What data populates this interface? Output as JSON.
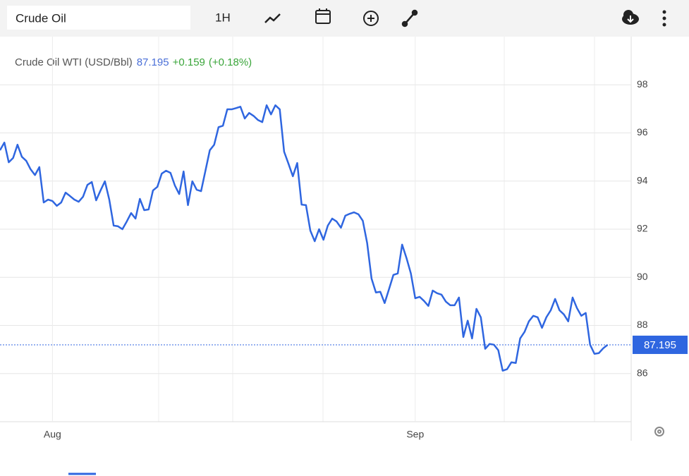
{
  "toolbar": {
    "search": "Crude Oil",
    "interval": "1H"
  },
  "chart_data": {
    "type": "line",
    "title": "Crude Oil WTI (USD/Bbl)",
    "last_price": 87.195,
    "change": "+0.159",
    "change_percent": "(+0.18%)",
    "color": "#2f66e0",
    "values": [
      95.28,
      95.6,
      94.78,
      94.96,
      95.51,
      95.01,
      94.84,
      94.49,
      94.25,
      94.58,
      93.11,
      93.23,
      93.17,
      92.97,
      93.11,
      93.52,
      93.38,
      93.23,
      93.14,
      93.35,
      93.84,
      93.96,
      93.2,
      93.61,
      93.99,
      93.23,
      92.15,
      92.12,
      92.0,
      92.32,
      92.67,
      92.44,
      93.26,
      92.79,
      92.82,
      93.61,
      93.76,
      94.31,
      94.43,
      94.34,
      93.82,
      93.46,
      94.4,
      93.0,
      93.99,
      93.64,
      93.58,
      94.43,
      95.28,
      95.51,
      96.24,
      96.3,
      96.98,
      96.98,
      97.03,
      97.09,
      96.6,
      96.83,
      96.71,
      96.54,
      96.45,
      97.15,
      96.77,
      97.15,
      96.98,
      95.22,
      94.72,
      94.2,
      94.75,
      93.02,
      93.0,
      91.94,
      91.5,
      92.0,
      91.56,
      92.15,
      92.44,
      92.32,
      92.06,
      92.56,
      92.64,
      92.7,
      92.62,
      92.35,
      91.42,
      89.95,
      89.37,
      89.4,
      88.93,
      89.51,
      90.1,
      90.16,
      91.36,
      90.8,
      90.16,
      89.13,
      89.19,
      89.02,
      88.81,
      89.45,
      89.34,
      89.28,
      88.99,
      88.84,
      88.84,
      89.16,
      87.52,
      88.2,
      87.46,
      88.69,
      88.34,
      87.03,
      87.23,
      87.2,
      86.97,
      86.12,
      86.18,
      86.47,
      86.44,
      87.46,
      87.73,
      88.17,
      88.4,
      88.34,
      87.9,
      88.34,
      88.63,
      89.1,
      88.63,
      88.46,
      88.17,
      89.16,
      88.72,
      88.4,
      88.52,
      87.2,
      86.82,
      86.85,
      87.05,
      87.195
    ],
    "xlim": [
      0,
      144.4
    ],
    "xticks": [
      {
        "value": 12,
        "label": "Aug"
      },
      {
        "value": 95,
        "label": "Sep"
      }
    ],
    "ylim": [
      84,
      100
    ],
    "yticks": [
      86,
      88,
      90,
      92,
      94,
      96,
      98
    ],
    "grid": true
  }
}
